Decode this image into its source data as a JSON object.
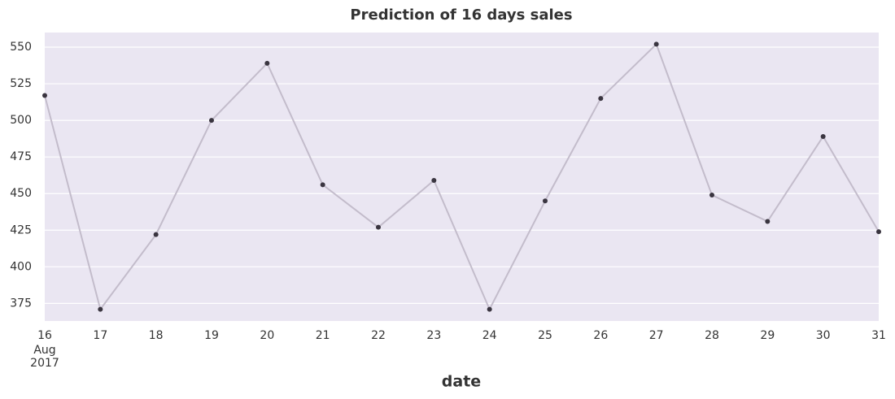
{
  "chart_data": {
    "type": "line",
    "title": "Prediction of 16 days sales",
    "x_label": "date",
    "x": [
      "2017-08-16",
      "2017-08-17",
      "2017-08-18",
      "2017-08-19",
      "2017-08-20",
      "2017-08-21",
      "2017-08-22",
      "2017-08-23",
      "2017-08-24",
      "2017-08-25",
      "2017-08-26",
      "2017-08-27",
      "2017-08-28",
      "2017-08-29",
      "2017-08-30",
      "2017-08-31"
    ],
    "xticks": [
      {
        "value": "2017-08-16",
        "label": "16"
      },
      {
        "value": "2017-08-17",
        "label": "17"
      },
      {
        "value": "2017-08-18",
        "label": "18"
      },
      {
        "value": "2017-08-19",
        "label": "19"
      },
      {
        "value": "2017-08-20",
        "label": "20"
      },
      {
        "value": "2017-08-21",
        "label": "21"
      },
      {
        "value": "2017-08-22",
        "label": "22"
      },
      {
        "value": "2017-08-23",
        "label": "23"
      },
      {
        "value": "2017-08-24",
        "label": "24"
      },
      {
        "value": "2017-08-25",
        "label": "25"
      },
      {
        "value": "2017-08-26",
        "label": "26"
      },
      {
        "value": "2017-08-27",
        "label": "27"
      },
      {
        "value": "2017-08-28",
        "label": "28"
      },
      {
        "value": "2017-08-29",
        "label": "29"
      },
      {
        "value": "2017-08-30",
        "label": "30"
      },
      {
        "value": "2017-08-31",
        "label": "31"
      }
    ],
    "xtick_sublabels": [
      "Aug",
      "2017"
    ],
    "series": [
      {
        "color": "#c3bccb",
        "marker_color": "#3a3540",
        "values": [
          517,
          371,
          422,
          500,
          539,
          456,
          427,
          459,
          371,
          445,
          515,
          552,
          449,
          431,
          489,
          424
        ]
      }
    ],
    "ylim": [
      363,
      560
    ],
    "yticks": [
      375,
      400,
      425,
      450,
      475,
      500,
      525,
      550
    ],
    "grid": true,
    "background": "#eae6f2"
  }
}
